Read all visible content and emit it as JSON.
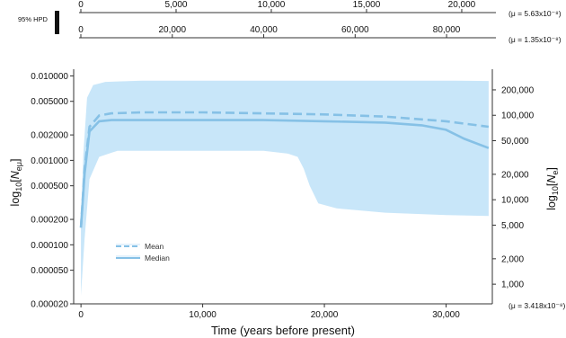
{
  "hpd_label": "95% HPD",
  "top_axes": [
    {
      "ticks": [
        "0",
        "5,000",
        "10,000",
        "15,000",
        "20,000"
      ],
      "values": [
        0,
        5000,
        10000,
        15000,
        20000
      ],
      "range": [
        0,
        21700
      ],
      "mu_label": "(μ = 5.63x10⁻⁸)"
    },
    {
      "ticks": [
        "0",
        "20,000",
        "40,000",
        "60,000",
        "80,000"
      ],
      "values": [
        0,
        20000,
        40000,
        60000,
        80000
      ],
      "range": [
        0,
        90400
      ],
      "mu_label": "(μ = 1.35x10⁻⁸)"
    }
  ],
  "bottom_mu_label": "(μ = 3.418x10⁻⁸)",
  "legend": {
    "mean": "Mean",
    "median": "Median"
  },
  "colors": {
    "band": "#c8e6f9",
    "line": "#86c1e6",
    "axis": "#333333"
  },
  "chart_data": {
    "type": "area",
    "xlabel": "Time (years before present)",
    "ylabel_left": "log10[Neμ]",
    "ylabel_right": "log10[Ne]",
    "xlim": [
      -600,
      33800
    ],
    "ylim": [
      2e-05,
      0.012
    ],
    "log_y": true,
    "grid": false,
    "legend_position": "lower-left",
    "x_ticks": [
      0,
      10000,
      20000,
      30000
    ],
    "x_tick_labels": [
      "0",
      "10,000",
      "20,000",
      "30,000"
    ],
    "y_ticks": [
      2e-05,
      5e-05,
      0.0001,
      0.0002,
      0.0005,
      0.001,
      0.002,
      0.005,
      0.01
    ],
    "y_tick_labels": [
      "0.000020",
      "0.000050",
      "0.000100",
      "0.000200",
      "0.000500",
      "0.001000",
      "0.002000",
      "0.005000",
      "0.010000"
    ],
    "right_ticks": [
      "1,000",
      "2,000",
      "5,000",
      "10,000",
      "20,000",
      "50,000",
      "100,000",
      "200,000"
    ],
    "right_values": [
      1000,
      2000,
      5000,
      10000,
      20000,
      50000,
      100000,
      200000
    ],
    "right_scale": 3.418e-08,
    "series": [
      {
        "name": "Mean",
        "style": "dashed",
        "x": [
          0,
          300,
          700,
          1500,
          2500,
          5000,
          10000,
          15000,
          20000,
          25000,
          30000,
          33500
        ],
        "y": [
          0.00016,
          0.0008,
          0.0025,
          0.0034,
          0.0036,
          0.0037,
          0.0037,
          0.0036,
          0.0035,
          0.0033,
          0.0029,
          0.0025
        ]
      },
      {
        "name": "Median",
        "style": "solid",
        "x": [
          0,
          300,
          700,
          1500,
          2500,
          5000,
          10000,
          15000,
          20000,
          25000,
          28000,
          30000,
          31500,
          33500
        ],
        "y": [
          0.00016,
          0.0007,
          0.0022,
          0.0029,
          0.003,
          0.003,
          0.003,
          0.003,
          0.0029,
          0.0028,
          0.0026,
          0.0023,
          0.0018,
          0.0014
        ]
      },
      {
        "name": "95% HPD upper",
        "style": "band-upper",
        "x": [
          0,
          200,
          500,
          1000,
          2000,
          5000,
          10000,
          20000,
          30000,
          33500
        ],
        "y": [
          0.0002,
          0.0012,
          0.0055,
          0.0078,
          0.0085,
          0.0088,
          0.0088,
          0.0088,
          0.0088,
          0.0087
        ]
      },
      {
        "name": "95% HPD lower",
        "style": "band-lower",
        "x": [
          0,
          300,
          700,
          1500,
          3000,
          10000,
          15000,
          17000,
          17800,
          18300,
          18800,
          19500,
          21000,
          25000,
          30000,
          33500
        ],
        "y": [
          2.5e-05,
          0.00012,
          0.0006,
          0.0011,
          0.0013,
          0.0013,
          0.0013,
          0.0012,
          0.0011,
          0.0008,
          0.0005,
          0.00031,
          0.00027,
          0.00024,
          0.000225,
          0.00022
        ]
      }
    ]
  }
}
